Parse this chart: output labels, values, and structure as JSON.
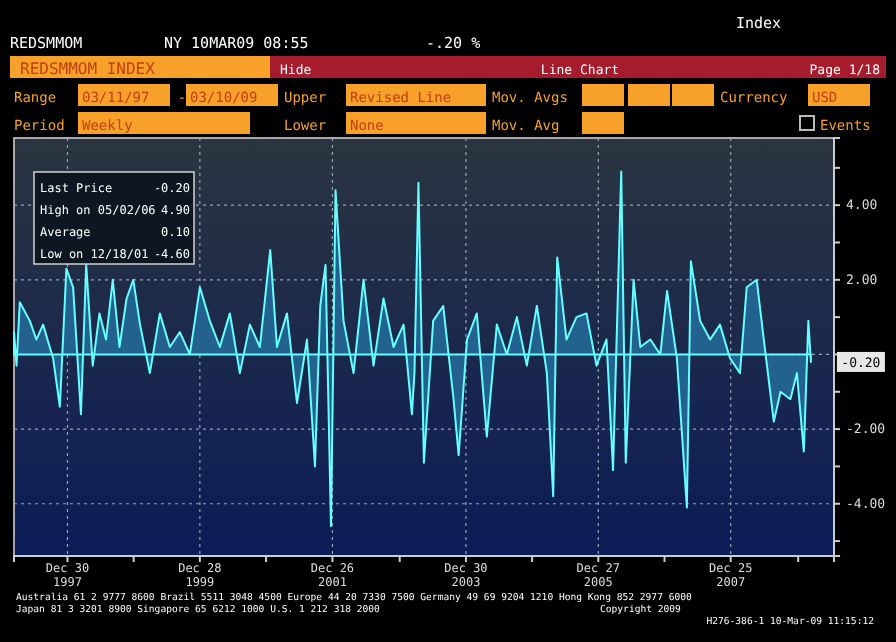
{
  "chart_data": {
    "type": "area",
    "title": "REDSMMOM INDEX",
    "annotations": [
      "REDSMMOM",
      "NY 10MAR09 08:55",
      "-.20 %",
      "Index",
      "Hide",
      "Line Chart",
      "Page 1/18",
      "Range",
      "03/11/97",
      "-",
      "03/10/09",
      "Upper",
      "Revised Line",
      "Mov. Avgs",
      "Currency",
      "USD",
      "Period",
      "Weekly",
      "Lower",
      "None",
      "Mov. Avg",
      "Events",
      "Last Price",
      "-0.20",
      "High on 05/02/06",
      "4.90",
      "Average",
      "0.10",
      "Low on 12/18/01",
      "-4.60",
      "Australia 61 2 9777 8600 Brazil 5511 3048 4500 Europe 44 20 7330 7500 Germany 49 69 9204 1210 Hong Kong 852 2977 6000",
      "Japan 81 3 3201 8900     Singapore 65 6212 1000     U.S. 1 212 318 2000",
      "Copyright 2009",
      "H276-386-1 10-Mar-09 11:15:12",
      {
        "text": "-0.20",
        "x": "2009-03-10",
        "y": -0.2
      }
    ],
    "x": [
      "1997-03-11",
      "1997-03-25",
      "1997-04-12",
      "1997-06-06",
      "1997-07-12",
      "1997-08-18",
      "1997-10-12",
      "1997-11-18",
      "1997-12-24",
      "1998-01-30",
      "1998-03-14",
      "1998-04-12",
      "1998-05-18",
      "1998-06-24",
      "1998-07-30",
      "1998-09-05",
      "1998-10-12",
      "1998-11-20",
      "1998-12-27",
      "1999-02-02",
      "1999-03-28",
      "1999-05-22",
      "1999-07-16",
      "1999-09-09",
      "1999-11-03",
      "1999-12-28",
      "2000-02-21",
      "2000-04-16",
      "2000-06-10",
      "2000-08-04",
      "2000-09-28",
      "2000-11-22",
      "2001-01-18",
      "2001-02-24",
      "2001-04-20",
      "2001-06-14",
      "2001-08-08",
      "2001-09-21",
      "2001-10-20",
      "2001-11-18",
      "2001-12-18",
      "2002-01-12",
      "2002-02-25",
      "2002-04-21",
      "2002-06-15",
      "2002-08-09",
      "2002-10-03",
      "2002-11-27",
      "2003-01-21",
      "2003-03-08",
      "2003-03-22",
      "2003-04-13",
      "2003-05-13",
      "2003-07-03",
      "2003-08-27",
      "2003-10-23",
      "2003-11-20",
      "2004-01-05",
      "2004-02-28",
      "2004-04-23",
      "2004-06-17",
      "2004-08-11",
      "2004-10-05",
      "2004-11-29",
      "2005-01-23",
      "2005-03-19",
      "2005-04-23",
      "2005-05-15",
      "2005-07-05",
      "2005-08-29",
      "2005-10-23",
      "2005-12-17",
      "2006-02-10",
      "2006-03-18",
      "2006-05-02",
      "2006-05-27",
      "2006-07-09",
      "2006-08-15",
      "2006-10-09",
      "2006-12-03",
      "2007-01-09",
      "2007-03-04",
      "2007-04-28",
      "2007-05-20",
      "2007-07-10",
      "2007-09-03",
      "2007-10-27",
      "2007-12-21",
      "2008-02-14",
      "2008-03-22",
      "2008-05-16",
      "2008-06-24",
      "2008-08-18",
      "2008-09-24",
      "2008-11-17",
      "2008-12-23",
      "2009-01-30",
      "2009-02-24",
      "2009-03-10"
    ],
    "series": [
      {
        "color": "#23618e",
        "values": [
          0.6,
          -0.3,
          1.4,
          0.9,
          0.4,
          0.8,
          -0.1,
          -1.4,
          2.3,
          1.8,
          -1.6,
          2.4,
          -0.3,
          1.1,
          0.4,
          2.0,
          0.2,
          1.5,
          2.0,
          0.8,
          -0.5,
          1.1,
          0.2,
          0.6,
          0.0,
          1.8,
          0.9,
          0.2,
          1.1,
          -0.5,
          0.8,
          0.2,
          2.8,
          0.2,
          1.1,
          -1.3,
          0.4,
          -3.0,
          1.3,
          2.4,
          -4.6,
          4.4,
          0.9,
          -0.5,
          2.0,
          -0.3,
          1.5,
          0.2,
          0.8,
          -1.6,
          -0.5,
          4.6,
          -2.9,
          0.9,
          1.3,
          -1.2,
          -2.7,
          0.4,
          1.1,
          -2.2,
          0.8,
          0.0,
          1.0,
          -0.3,
          1.3,
          -0.5,
          -3.8,
          2.6,
          0.4,
          1.0,
          1.1,
          -0.3,
          0.4,
          -3.1,
          4.9,
          -2.9,
          2.0,
          0.2,
          0.4,
          0.0,
          1.7,
          -0.1,
          -4.1,
          2.5,
          0.9,
          0.4,
          0.8,
          -0.1,
          -0.5,
          1.8,
          2.0,
          0.4,
          -1.8,
          -1.0,
          -1.2,
          -0.5,
          -2.6,
          0.9,
          -0.2
        ]
      }
    ],
    "xlim": [
      "1997-03-11",
      "2009-07-15"
    ],
    "xticks": [
      {
        "value": "1997-12-30",
        "label": "Dec 30 1997"
      },
      {
        "value": "1998-12-29",
        "label": null
      },
      {
        "value": "1999-12-28",
        "label": "Dec 28 1999"
      },
      {
        "value": "2000-12-26",
        "label": null
      },
      {
        "value": "2001-12-26",
        "label": "Dec 26 2001"
      },
      {
        "value": "2002-12-31",
        "label": null
      },
      {
        "value": "2003-12-30",
        "label": "Dec 30 2003"
      },
      {
        "value": "2004-12-28",
        "label": null
      },
      {
        "value": "2005-12-27",
        "label": "Dec 27 2005"
      },
      {
        "value": "2006-12-26",
        "label": null
      },
      {
        "value": "2007-12-25",
        "label": "Dec 25 2007"
      },
      {
        "value": "2008-12-30",
        "label": null
      }
    ],
    "ylim": [
      -5.4,
      5.8
    ],
    "yticks": [
      {
        "value": 5,
        "label": null
      },
      {
        "value": 4,
        "label": "4.00"
      },
      {
        "value": 3,
        "label": null
      },
      {
        "value": 2,
        "label": "2.00"
      },
      {
        "value": 1,
        "label": null
      },
      {
        "value": 0,
        "label": null
      },
      {
        "value": -1,
        "label": null
      },
      {
        "value": -2,
        "label": "-2.00"
      },
      {
        "value": -3,
        "label": null
      },
      {
        "value": -4,
        "label": "-4.00"
      },
      {
        "value": -5,
        "label": null
      }
    ],
    "grid": true
  }
}
